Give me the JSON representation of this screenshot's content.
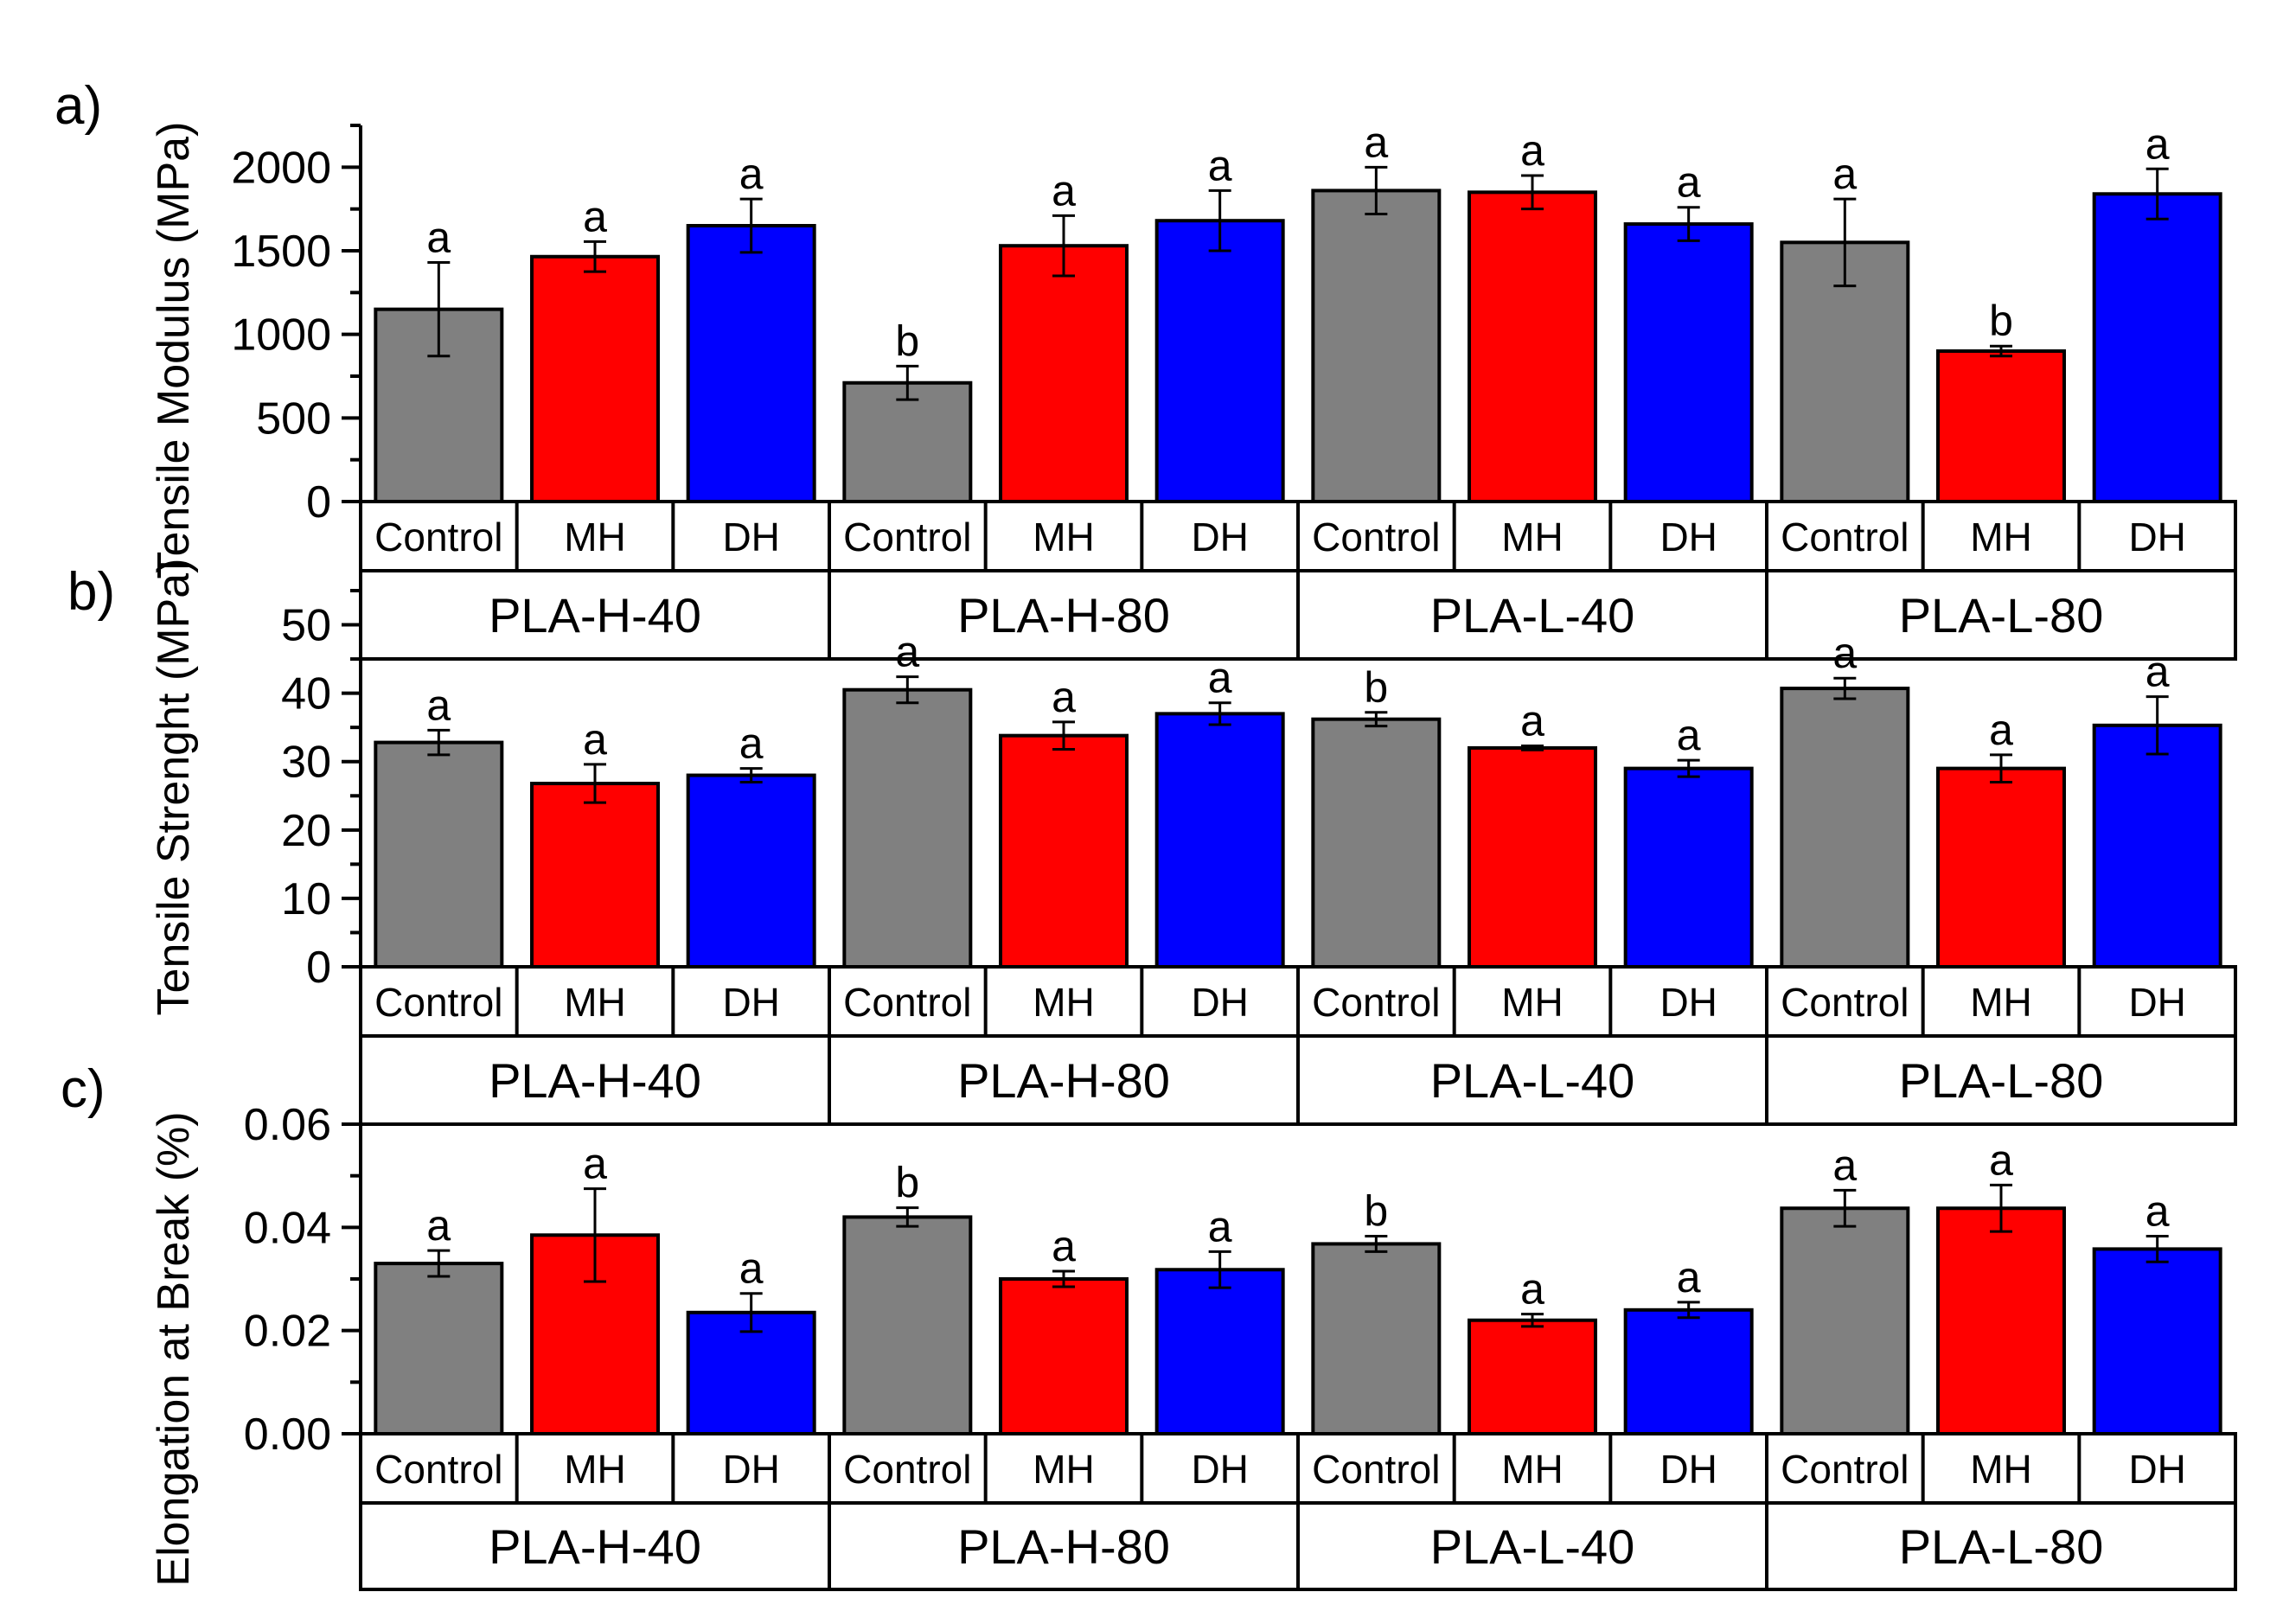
{
  "colors": {
    "Control": "#808080",
    "MH": "#ff0000",
    "DH": "#0000ff",
    "axis": "#000000",
    "background": "#ffffff"
  },
  "chart_data": [
    {
      "type": "bar",
      "panel_label": "a)",
      "ylabel": "Tensile Modulus (MPa)",
      "ylim": [
        0,
        2250
      ],
      "yticks": [
        "0",
        "500",
        "1000",
        "1500",
        "2000"
      ],
      "ytick_values": [
        0,
        500,
        1000,
        1500,
        2000
      ],
      "categories": [
        "Control",
        "MH",
        "DH",
        "Control",
        "MH",
        "DH",
        "Control",
        "MH",
        "DH",
        "Control",
        "MH",
        "DH"
      ],
      "groups": [
        "PLA-H-40",
        "PLA-H-80",
        "PLA-L-40",
        "PLA-L-80"
      ],
      "values": [
        1150,
        1465,
        1650,
        710,
        1530,
        1680,
        1860,
        1850,
        1660,
        1550,
        900,
        1840
      ],
      "errors": [
        280,
        90,
        160,
        100,
        180,
        180,
        140,
        100,
        100,
        260,
        30,
        150
      ],
      "significance": [
        "a",
        "a",
        "a",
        "b",
        "a",
        "a",
        "a",
        "a",
        "a",
        "a",
        "b",
        "a"
      ],
      "grid": false
    },
    {
      "type": "bar",
      "panel_label": "b)",
      "ylabel": "Tensile Strenght (MPa)",
      "ylim": [
        0,
        55
      ],
      "yticks": [
        "0",
        "10",
        "20",
        "30",
        "40",
        "50"
      ],
      "ytick_values": [
        0,
        10,
        20,
        30,
        40,
        50
      ],
      "categories": [
        "Control",
        "MH",
        "DH",
        "Control",
        "MH",
        "DH",
        "Control",
        "MH",
        "DH",
        "Control",
        "MH",
        "DH"
      ],
      "groups": [
        "PLA-H-40",
        "PLA-H-80",
        "PLA-L-40",
        "PLA-L-80"
      ],
      "values": [
        32.8,
        26.8,
        28.0,
        40.5,
        33.8,
        37.0,
        36.2,
        32.0,
        29.0,
        40.7,
        29.0,
        35.3
      ],
      "errors": [
        1.8,
        2.8,
        1.0,
        1.9,
        2.0,
        1.6,
        1.0,
        0.3,
        1.2,
        1.5,
        2.0,
        4.2
      ],
      "significance": [
        "a",
        "a",
        "a",
        "a",
        "a",
        "a",
        "b",
        "a",
        "a",
        "a",
        "a",
        "a"
      ],
      "grid": false
    },
    {
      "type": "bar",
      "panel_label": "c)",
      "ylabel": "Elongation at Break (%)",
      "ylim": [
        0,
        0.06
      ],
      "yticks": [
        "0.00",
        "0.02",
        "0.04",
        "0.06"
      ],
      "ytick_values": [
        0,
        0.02,
        0.04,
        0.06
      ],
      "categories": [
        "Control",
        "MH",
        "DH",
        "Control",
        "MH",
        "DH",
        "Control",
        "MH",
        "DH",
        "Control",
        "MH",
        "DH"
      ],
      "groups": [
        "PLA-H-40",
        "PLA-H-80",
        "PLA-L-40",
        "PLA-L-80"
      ],
      "values": [
        0.033,
        0.0385,
        0.0235,
        0.042,
        0.03,
        0.0318,
        0.0368,
        0.022,
        0.024,
        0.0437,
        0.0437,
        0.0358
      ],
      "errors": [
        0.0025,
        0.009,
        0.0037,
        0.0018,
        0.0015,
        0.0035,
        0.0015,
        0.0012,
        0.0015,
        0.0035,
        0.0045,
        0.0025
      ],
      "significance": [
        "a",
        "a",
        "a",
        "b",
        "a",
        "a",
        "b",
        "a",
        "a",
        "a",
        "a",
        "a"
      ],
      "grid": false
    }
  ]
}
